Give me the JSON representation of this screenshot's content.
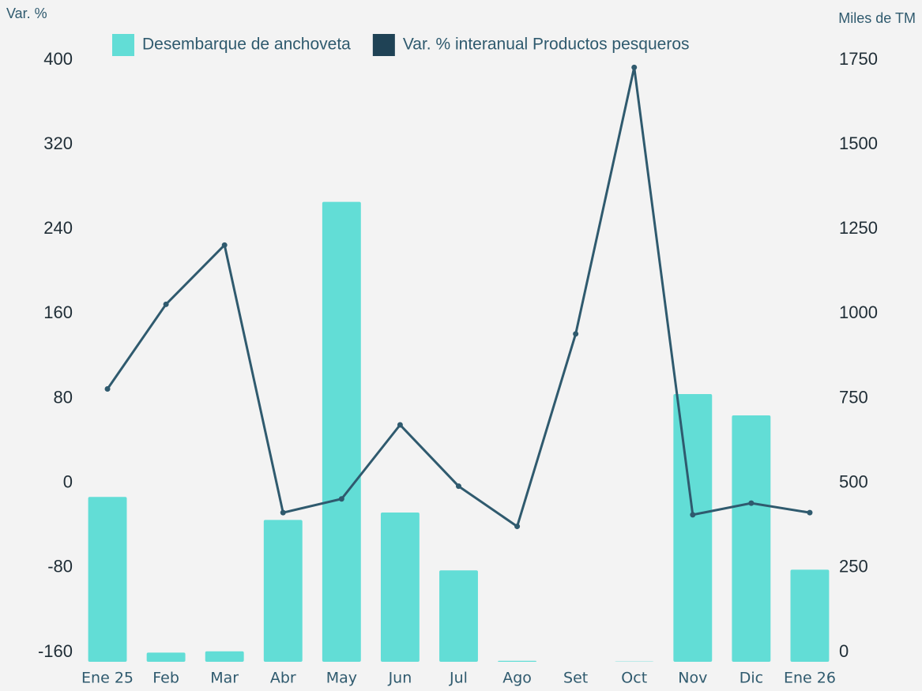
{
  "chart_data": {
    "type": "bar-line",
    "y_label": "Var. %",
    "y2_label": "Miles de TM",
    "categories": [
      "Ene 25",
      "Feb",
      "Mar",
      "Abr",
      "May",
      "Jun",
      "Jul",
      "Ago",
      "Set",
      "Oct",
      "Nov",
      "Dic",
      "Ene 26"
    ],
    "series": [
      {
        "name": "Desembarque de anchoveta",
        "type": "bar",
        "axis": "y2",
        "color": "#62ddd6",
        "values": [
          487,
          27,
          31,
          419,
          1359,
          441,
          270,
          3,
          0,
          1,
          791,
          728,
          272
        ]
      },
      {
        "name": "Var. % interanual Productos pesqueros",
        "type": "line",
        "axis": "y",
        "color": "#2f5a6e",
        "legend_color": "#1f4255",
        "values": [
          98,
          178,
          234,
          -19,
          -6,
          64,
          6,
          -32,
          150,
          402,
          -21,
          -10,
          -19
        ]
      }
    ],
    "ylim": [
      -160,
      400
    ],
    "yticks": [
      -160,
      -80,
      0,
      80,
      160,
      240,
      320,
      400
    ],
    "y2lim": [
      0,
      1750
    ],
    "y2ticks": [
      0,
      250,
      500,
      750,
      1000,
      1250,
      1500,
      1750
    ],
    "grid": false,
    "legend": "top"
  }
}
